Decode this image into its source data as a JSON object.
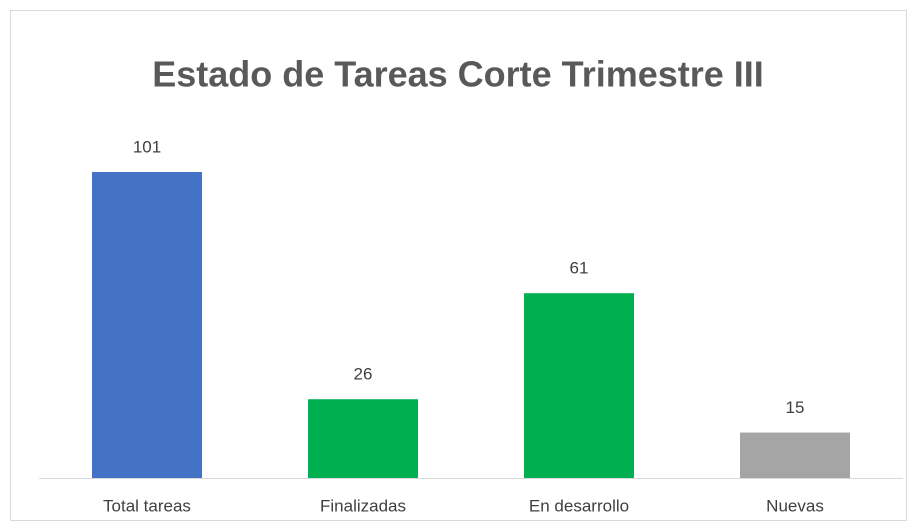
{
  "chart_data": {
    "type": "bar",
    "title": "Estado de Tareas Corte Trimestre III",
    "categories": [
      "Total tareas",
      "Finalizadas",
      "En desarrollo",
      "Nuevas"
    ],
    "values": [
      101,
      26,
      61,
      15
    ],
    "colors": [
      "#4472c4",
      "#00b050",
      "#00b050",
      "#a5a5a5"
    ]
  }
}
